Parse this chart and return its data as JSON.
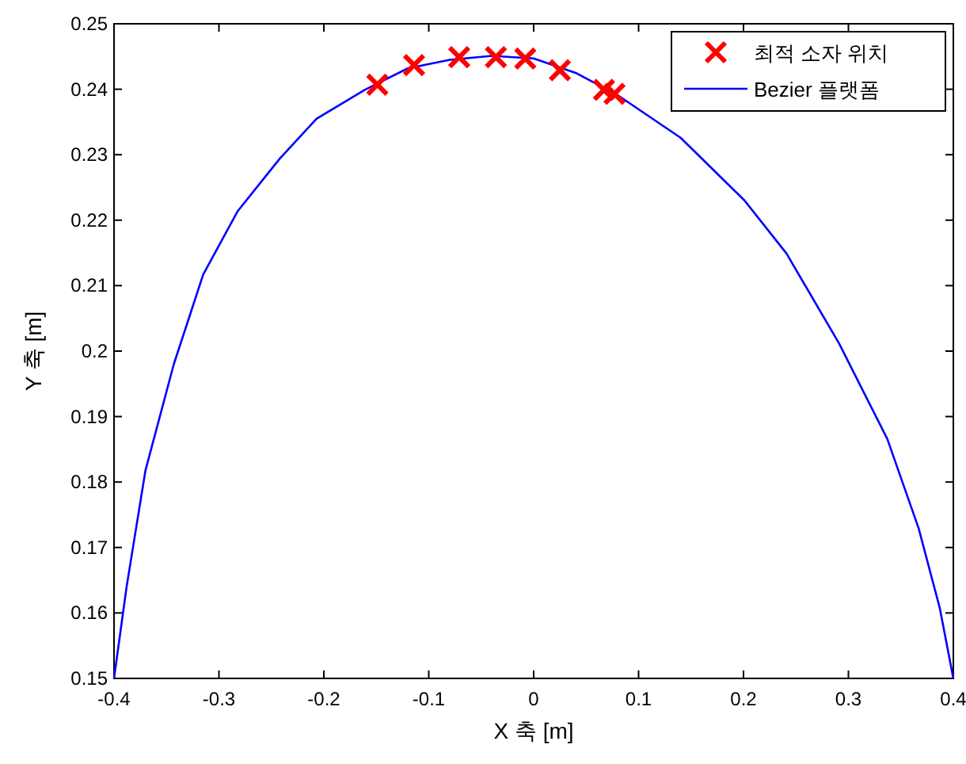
{
  "chart_data": {
    "type": "line",
    "xlabel": "X 축 [m]",
    "ylabel": "Y 축 [m]",
    "xlim": [
      -0.4,
      0.4
    ],
    "ylim": [
      0.15,
      0.25
    ],
    "xticks": [
      -0.4,
      -0.3,
      -0.2,
      -0.1,
      0,
      0.1,
      0.2,
      0.3,
      0.4
    ],
    "yticks": [
      0.15,
      0.16,
      0.17,
      0.18,
      0.19,
      0.2,
      0.21,
      0.22,
      0.23,
      0.24,
      0.25
    ],
    "legend": "top right",
    "grid": false,
    "series": [
      {
        "name": "최적 소자 위치",
        "type": "scatter",
        "marker": "cross",
        "color": "#ff0000",
        "x": [
          -0.149,
          -0.114,
          -0.071,
          -0.036,
          -0.008,
          0.025,
          0.067,
          0.077
        ],
        "values": [
          0.2407,
          0.2437,
          0.2449,
          0.2449,
          0.2447,
          0.2429,
          0.2399,
          0.2393
        ]
      },
      {
        "name": "Bezier 플랫폼",
        "type": "line",
        "marker": "none",
        "line_style": "solid",
        "color": "#0000ff",
        "x": [
          -0.4,
          -0.388,
          -0.37,
          -0.343,
          -0.315,
          -0.282,
          -0.242,
          -0.207,
          -0.161,
          -0.12,
          -0.08,
          -0.04,
          0,
          0.04,
          0.08,
          0.14,
          0.201,
          0.241,
          0.291,
          0.337,
          0.367,
          0.387,
          0.4
        ],
        "values": [
          0.15,
          0.164,
          0.1818,
          0.198,
          0.2117,
          0.2214,
          0.2294,
          0.2355,
          0.2399,
          0.2432,
          0.2445,
          0.2451,
          0.2447,
          0.2425,
          0.2391,
          0.2326,
          0.223,
          0.2149,
          0.2012,
          0.1866,
          0.1729,
          0.1608,
          0.15
        ]
      }
    ]
  }
}
